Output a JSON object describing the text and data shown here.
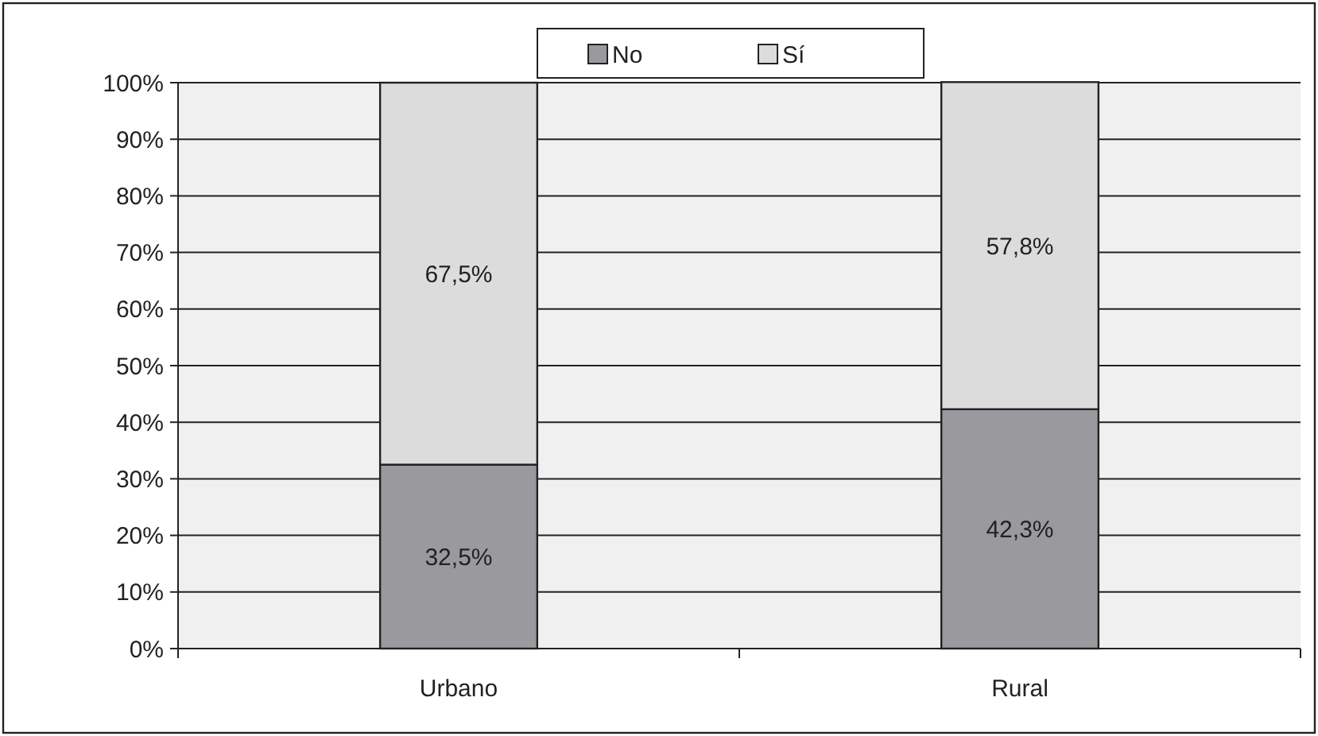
{
  "chart_data": {
    "type": "bar",
    "stacked": true,
    "categories": [
      "Urbano",
      "Rural"
    ],
    "series": [
      {
        "name": "No",
        "color": "#9a9a9e",
        "values": [
          32.5,
          42.3
        ],
        "value_labels": [
          "32,5%",
          "42,3%"
        ]
      },
      {
        "name": "Sí",
        "color": "#dcdcdc",
        "values": [
          67.5,
          57.8
        ],
        "value_labels": [
          "67,5%",
          "57,8%"
        ]
      }
    ],
    "ylim": [
      0,
      100
    ],
    "yticks": [
      {
        "value": 0,
        "label": "0%"
      },
      {
        "value": 10,
        "label": "10%"
      },
      {
        "value": 20,
        "label": "20%"
      },
      {
        "value": 30,
        "label": "30%"
      },
      {
        "value": 40,
        "label": "40%"
      },
      {
        "value": 50,
        "label": "50%"
      },
      {
        "value": 60,
        "label": "60%"
      },
      {
        "value": 70,
        "label": "70%"
      },
      {
        "value": 80,
        "label": "80%"
      },
      {
        "value": 90,
        "label": "90%"
      },
      {
        "value": 100,
        "label": "100%"
      }
    ],
    "grid": "y",
    "legend": "top"
  }
}
